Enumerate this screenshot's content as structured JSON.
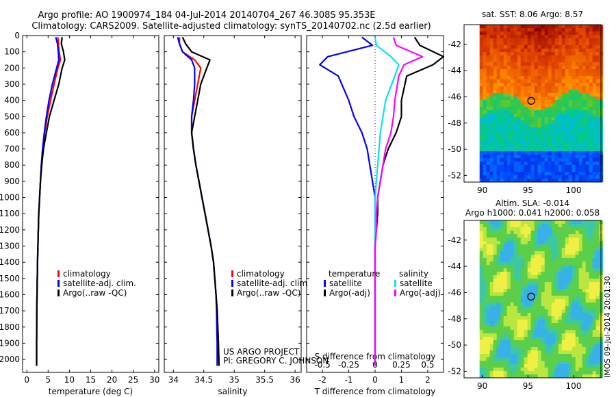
{
  "title_line1": "Argo profile: AO 1900974_184 04-Jul-2014 20140704_267 46.308S 95.353E",
  "title_line2": "Climatology: CARS2009. Satellite-adjusted climatology: synTS_20140702.nc (2.5d earlier)",
  "credit_line1": "US ARGO PROJECT",
  "credit_line2": "PI: GREGORY C. JOHNSON",
  "side_stamp": "IMOS 09-Jul-2014 20:01:30",
  "colors": {
    "climatology": "#ff0000",
    "satellite": "#0000ff",
    "argo": "#000000",
    "sat_salinity": "#00e5ee",
    "argo_salinity": "#ff00ff"
  },
  "chart_data": [
    {
      "type": "line",
      "panel": "temperature",
      "xlabel": "temperature (deg C)",
      "ylabel": "",
      "xlim": [
        -1,
        31
      ],
      "ylim": [
        0,
        2080
      ],
      "y_inverted": true,
      "xticks": [
        0,
        5,
        10,
        15,
        20,
        25,
        30
      ],
      "yticks": [
        0,
        100,
        200,
        300,
        400,
        500,
        600,
        700,
        800,
        900,
        1000,
        1100,
        1200,
        1300,
        1400,
        1500,
        1600,
        1700,
        1800,
        1900,
        2000
      ],
      "legend": [
        "climatology",
        "satellite-adj. clim.",
        "Argo(..raw -QC)"
      ],
      "series": [
        {
          "key": "climatology",
          "x": [
            7.3,
            7.4,
            7.6,
            7.9,
            7.3,
            6.4,
            5.6,
            4.8,
            4.2,
            3.8,
            3.4,
            3.2,
            3.0,
            2.8,
            2.7,
            2.6,
            2.5,
            2.45,
            2.4,
            2.35,
            2.3,
            2.3
          ],
          "y": [
            10,
            50,
            100,
            150,
            200,
            300,
            400,
            500,
            600,
            700,
            800,
            900,
            1000,
            1100,
            1200,
            1300,
            1400,
            1500,
            1600,
            1700,
            1900,
            2040
          ]
        },
        {
          "key": "satellite",
          "x": [
            6.8,
            7.2,
            7.4,
            7.5,
            7.0,
            6.0,
            5.2,
            4.6,
            4.1,
            3.7,
            3.4,
            3.2,
            3.0,
            2.8,
            2.7,
            2.6,
            2.5,
            2.45,
            2.4,
            2.35,
            2.3,
            2.3
          ],
          "y": [
            10,
            50,
            100,
            150,
            200,
            300,
            400,
            500,
            600,
            700,
            800,
            900,
            1000,
            1100,
            1200,
            1300,
            1400,
            1500,
            1600,
            1700,
            1900,
            2040
          ]
        },
        {
          "key": "argo",
          "x": [
            8.3,
            8.1,
            8.6,
            8.9,
            8.3,
            7.5,
            6.4,
            5.3,
            4.6,
            3.9,
            3.5,
            3.2,
            3.0,
            2.8,
            2.7,
            2.6,
            2.5,
            2.45,
            2.4,
            2.35,
            2.3,
            2.3
          ],
          "y": [
            10,
            50,
            100,
            150,
            200,
            300,
            400,
            500,
            600,
            700,
            800,
            900,
            1000,
            1100,
            1200,
            1300,
            1400,
            1500,
            1600,
            1700,
            1900,
            2040
          ]
        }
      ]
    },
    {
      "type": "line",
      "panel": "salinity",
      "xlabel": "salinity",
      "ylabel": "",
      "xlim": [
        33.85,
        36.1
      ],
      "ylim": [
        0,
        2080
      ],
      "y_inverted": true,
      "xticks": [
        34,
        34.5,
        35,
        35.5,
        36
      ],
      "legend": [
        "climatology",
        "satellite-adj. clim.",
        "Argo(..raw -QC)"
      ],
      "series": [
        {
          "key": "climatology",
          "x": [
            34.1,
            34.1,
            34.15,
            34.35,
            34.45,
            34.4,
            34.35,
            34.3,
            34.3,
            34.33,
            34.37,
            34.42,
            34.47,
            34.52,
            34.57,
            34.62,
            34.66,
            34.68,
            34.7,
            34.72,
            34.74,
            34.75
          ],
          "y": [
            10,
            50,
            100,
            150,
            200,
            300,
            400,
            500,
            600,
            700,
            800,
            900,
            1000,
            1100,
            1200,
            1300,
            1400,
            1500,
            1600,
            1700,
            1900,
            2040
          ]
        },
        {
          "key": "satellite",
          "x": [
            34.07,
            34.1,
            34.15,
            34.3,
            34.35,
            34.35,
            34.33,
            34.3,
            34.3,
            34.33,
            34.37,
            34.42,
            34.47,
            34.52,
            34.57,
            34.62,
            34.66,
            34.68,
            34.7,
            34.71,
            34.72,
            34.72
          ],
          "y": [
            10,
            50,
            100,
            150,
            200,
            300,
            400,
            500,
            600,
            700,
            800,
            900,
            1000,
            1100,
            1200,
            1300,
            1400,
            1500,
            1600,
            1700,
            1900,
            2040
          ]
        },
        {
          "key": "argo",
          "x": [
            34.15,
            34.2,
            34.3,
            34.6,
            34.55,
            34.45,
            34.4,
            34.35,
            34.3,
            34.33,
            34.37,
            34.42,
            34.47,
            34.52,
            34.57,
            34.62,
            34.66,
            34.68,
            34.7,
            34.72,
            34.74,
            34.75
          ],
          "y": [
            10,
            50,
            100,
            150,
            200,
            300,
            400,
            500,
            600,
            700,
            800,
            900,
            1000,
            1100,
            1200,
            1300,
            1400,
            1500,
            1600,
            1700,
            1900,
            2040
          ]
        }
      ]
    },
    {
      "type": "line",
      "panel": "difference",
      "xlabel": "T difference from climatology",
      "xlabel_top": "S difference from climatology",
      "xlim": [
        -2.6,
        2.6
      ],
      "ylim": [
        0,
        2080
      ],
      "y_inverted": true,
      "xticks": [
        -2,
        -1,
        0,
        1,
        2
      ],
      "xticks_s": [
        "-0.5",
        "-0.25",
        "0",
        "0.25",
        "0.5"
      ],
      "legend_titles": [
        "temperature",
        "salinity"
      ],
      "legend": [
        "satellite",
        "Argo(-adj)",
        "satellite",
        "Argo(-adj)"
      ],
      "series": [
        {
          "key": "t_satellite",
          "x": [
            -0.5,
            -0.1,
            -1.8,
            -2.1,
            -1.4,
            -1.0,
            -0.8,
            -0.5,
            -0.3,
            -0.2,
            -0.1,
            0.0,
            0.0,
            0.0,
            0.0,
            0.0,
            0.0,
            0.0,
            0.0,
            0.0
          ],
          "y": [
            10,
            60,
            130,
            180,
            250,
            400,
            500,
            600,
            700,
            800,
            900,
            1000,
            1100,
            1200,
            1300,
            1400,
            1600,
            1800,
            1900,
            2040
          ]
        },
        {
          "key": "t_argo",
          "x": [
            1.5,
            1.7,
            2.6,
            2.2,
            1.2,
            1.0,
            1.0,
            0.8,
            0.5,
            0.3,
            0.2,
            0.1,
            0.1,
            0.05,
            0.0,
            0.0,
            0.0,
            0.0,
            0.0,
            0.0
          ],
          "y": [
            10,
            60,
            130,
            180,
            250,
            400,
            500,
            600,
            700,
            800,
            900,
            1000,
            1100,
            1200,
            1300,
            1400,
            1600,
            1800,
            1900,
            2040
          ]
        },
        {
          "key": "s_satellite",
          "x": [
            0.0,
            0.05,
            0.6,
            0.9,
            0.75,
            0.4,
            0.3,
            0.2,
            0.15,
            0.1,
            0.05,
            0.0,
            0.0,
            0.0,
            0.0,
            0.0,
            0.0,
            0.0,
            0.0,
            0.0
          ],
          "y": [
            10,
            60,
            130,
            180,
            250,
            400,
            500,
            600,
            700,
            800,
            900,
            1000,
            1100,
            1200,
            1300,
            1400,
            1600,
            1800,
            1900,
            2040
          ]
        },
        {
          "key": "s_argo",
          "x": [
            0.7,
            0.8,
            1.8,
            1.1,
            0.9,
            0.75,
            0.7,
            0.6,
            0.4,
            0.3,
            0.2,
            0.1,
            0.05,
            0.05,
            0.0,
            0.0,
            0.0,
            0.0,
            0.0,
            0.0
          ],
          "y": [
            10,
            60,
            130,
            180,
            250,
            400,
            500,
            600,
            700,
            800,
            900,
            1000,
            1100,
            1200,
            1300,
            1400,
            1600,
            1800,
            1900,
            2040
          ]
        }
      ]
    },
    {
      "type": "heatmap",
      "panel": "sst_map",
      "title": "sat. SST: 8.06 Argo: 8.57",
      "xlim": [
        88,
        103
      ],
      "ylim": [
        -52.5,
        -40.5
      ],
      "xticks": [
        90,
        95,
        100
      ],
      "yticks": [
        -42,
        -44,
        -46,
        -48,
        -50,
        -52
      ],
      "marker": {
        "lon": 95.353,
        "lat": -46.308
      }
    },
    {
      "type": "heatmap",
      "panel": "sla_map",
      "title": "Altim. SLA: -0.014",
      "title_line2": "Argo h1000: 0.041 h2000: 0.058",
      "xlim": [
        88,
        103
      ],
      "ylim": [
        -52.5,
        -40.5
      ],
      "xticks": [
        90,
        95,
        100
      ],
      "yticks": [
        -42,
        -44,
        -46,
        -48,
        -50,
        -52
      ],
      "marker": {
        "lon": 95.353,
        "lat": -46.308
      }
    }
  ]
}
